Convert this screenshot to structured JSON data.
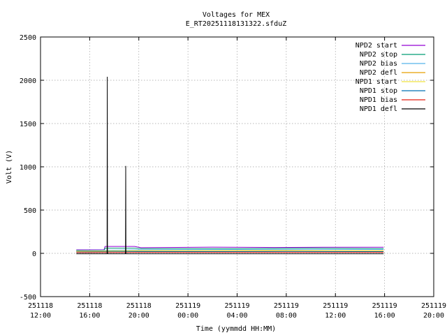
{
  "chart_data": {
    "type": "line",
    "title": "Voltages for MEX",
    "subtitle": "E_RT20251118131322.sfduZ",
    "xlabel": "Time (yymmdd HH:MM)",
    "ylabel": "Volt (V)",
    "xlim": [
      "2025-11-18 12:00",
      "2025-11-19 20:00"
    ],
    "ylim": [
      -500,
      2500
    ],
    "grid": true,
    "legend_position": "top-right",
    "x_ticks": [
      {
        "date": "251118",
        "time": "12:00",
        "t": "2025-11-18 12:00"
      },
      {
        "date": "251118",
        "time": "16:00",
        "t": "2025-11-18 16:00"
      },
      {
        "date": "251118",
        "time": "20:00",
        "t": "2025-11-18 20:00"
      },
      {
        "date": "251119",
        "time": "00:00",
        "t": "2025-11-19 00:00"
      },
      {
        "date": "251119",
        "time": "04:00",
        "t": "2025-11-19 04:00"
      },
      {
        "date": "251119",
        "time": "08:00",
        "t": "2025-11-19 08:00"
      },
      {
        "date": "251119",
        "time": "12:00",
        "t": "2025-11-19 12:00"
      },
      {
        "date": "251119",
        "time": "16:00",
        "t": "2025-11-19 16:00"
      },
      {
        "date": "251119",
        "time": "20:00",
        "t": "2025-11-19 20:00"
      }
    ],
    "y_ticks": [
      -500,
      0,
      500,
      1000,
      1500,
      2000,
      2500
    ],
    "series": [
      {
        "name": "NPD2 start",
        "color": "#9400d3",
        "values": [
          [
            "2025-11-18 14:55",
            40
          ],
          [
            "2025-11-18 17:10",
            40
          ],
          [
            "2025-11-18 17:15",
            80
          ],
          [
            "2025-11-18 19:40",
            80
          ],
          [
            "2025-11-18 20:10",
            65
          ],
          [
            "2025-11-19 02:00",
            72
          ],
          [
            "2025-11-19 07:00",
            68
          ],
          [
            "2025-11-19 11:00",
            70
          ],
          [
            "2025-11-19 15:55",
            70
          ]
        ]
      },
      {
        "name": "NPD2 stop",
        "color": "#009e73",
        "values": [
          [
            "2025-11-18 14:55",
            35
          ],
          [
            "2025-11-18 17:10",
            35
          ],
          [
            "2025-11-18 17:15",
            60
          ],
          [
            "2025-11-18 19:40",
            60
          ],
          [
            "2025-11-18 20:10",
            55
          ],
          [
            "2025-11-19 04:00",
            55
          ],
          [
            "2025-11-19 10:00",
            60
          ],
          [
            "2025-11-19 15:55",
            55
          ]
        ]
      },
      {
        "name": "NPD2 bias",
        "color": "#56b4e9",
        "values": [
          [
            "2025-11-18 14:55",
            30
          ],
          [
            "2025-11-18 20:00",
            40
          ],
          [
            "2025-11-19 06:00",
            45
          ],
          [
            "2025-11-19 15:55",
            45
          ]
        ]
      },
      {
        "name": "NPD2 defl",
        "color": "#e69f00",
        "values": [
          [
            "2025-11-18 14:55",
            20
          ],
          [
            "2025-11-18 20:00",
            30
          ],
          [
            "2025-11-19 07:00",
            30
          ],
          [
            "2025-11-19 15:55",
            30
          ]
        ]
      },
      {
        "name": "NPD1 start",
        "color": "#f0e442",
        "values": [
          [
            "2025-11-18 14:55",
            25
          ],
          [
            "2025-11-18 20:00",
            30
          ],
          [
            "2025-11-19 08:00",
            35
          ],
          [
            "2025-11-19 15:55",
            30
          ]
        ]
      },
      {
        "name": "NPD1 stop",
        "color": "#0072b2",
        "values": [
          [
            "2025-11-18 14:55",
            15
          ],
          [
            "2025-11-18 20:00",
            20
          ],
          [
            "2025-11-19 08:00",
            22
          ],
          [
            "2025-11-19 15:55",
            20
          ]
        ]
      },
      {
        "name": "NPD1 bias",
        "color": "#e51e10",
        "values": [
          [
            "2025-11-18 14:55",
            10
          ],
          [
            "2025-11-18 20:00",
            12
          ],
          [
            "2025-11-19 08:00",
            12
          ],
          [
            "2025-11-19 15:55",
            12
          ]
        ]
      },
      {
        "name": "NPD1 defl",
        "color": "#000000",
        "values": [
          [
            "2025-11-18 14:55",
            -5
          ],
          [
            "2025-11-18 17:25",
            -5
          ],
          [
            "2025-11-18 17:26",
            2040
          ],
          [
            "2025-11-18 17:27",
            -5
          ],
          [
            "2025-11-18 18:55",
            -5
          ],
          [
            "2025-11-18 18:56",
            1010
          ],
          [
            "2025-11-18 18:57",
            -5
          ],
          [
            "2025-11-19 15:55",
            -5
          ]
        ]
      }
    ]
  }
}
